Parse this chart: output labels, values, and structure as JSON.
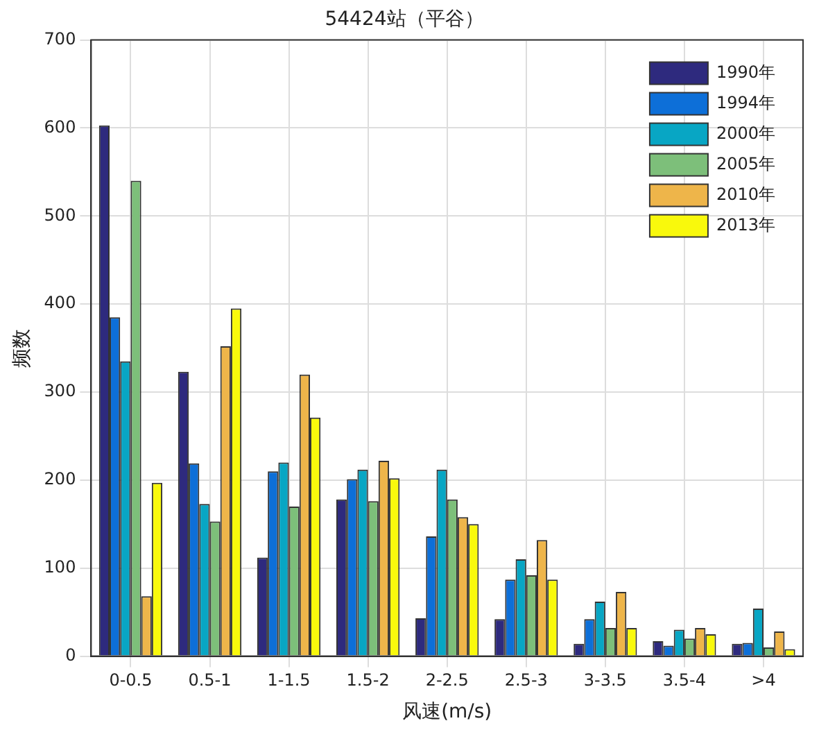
{
  "chart_data": {
    "type": "bar",
    "title": "54424站（平谷）",
    "xlabel": "风速(m/s)",
    "ylabel": "频数",
    "categories": [
      "0-0.5",
      "0.5-1",
      "1-1.5",
      "1.5-2",
      "2-2.5",
      "2.5-3",
      "3-3.5",
      "3.5-4",
      ">4"
    ],
    "series": [
      {
        "name": "1990年",
        "color": "#2e2a7e",
        "values": [
          603,
          323,
          112,
          178,
          43,
          42,
          14,
          17,
          14
        ]
      },
      {
        "name": "1994年",
        "color": "#0d6fd8",
        "values": [
          385,
          219,
          210,
          201,
          136,
          87,
          42,
          12,
          15
        ]
      },
      {
        "name": "2000年",
        "color": "#08a6c4",
        "values": [
          335,
          173,
          220,
          212,
          212,
          110,
          62,
          30,
          54
        ]
      },
      {
        "name": "2005年",
        "color": "#7dbf7a",
        "values": [
          540,
          153,
          170,
          176,
          178,
          92,
          32,
          20,
          10
        ]
      },
      {
        "name": "2010年",
        "color": "#eeb54a",
        "values": [
          68,
          352,
          320,
          222,
          158,
          132,
          73,
          32,
          28
        ]
      },
      {
        "name": "2013年",
        "color": "#f9f90c",
        "values": [
          197,
          395,
          271,
          202,
          150,
          87,
          32,
          25,
          8
        ]
      }
    ],
    "ylim": [
      0,
      700
    ],
    "yticks": [
      0,
      100,
      200,
      300,
      400,
      500,
      600,
      700
    ],
    "grid": true,
    "legend": "top right"
  }
}
